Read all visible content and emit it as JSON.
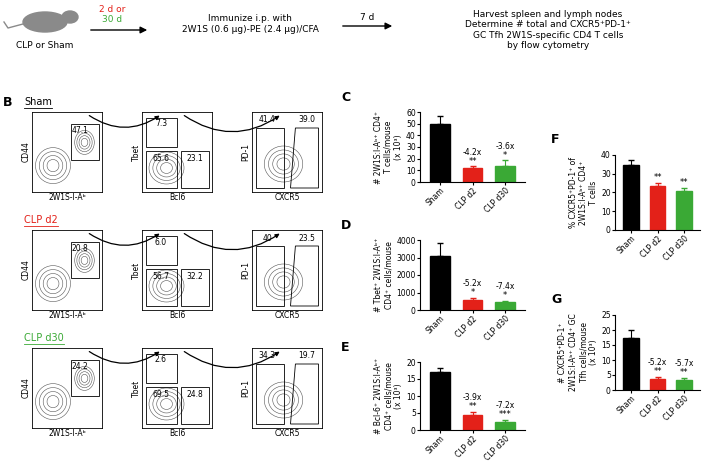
{
  "diagram": {
    "mouse_label": "CLP or Sham",
    "interval_1": {
      "text": "2 d or",
      "color": "#e32119"
    },
    "interval_2": {
      "text": "30 d",
      "color": "#3aa935"
    },
    "immunize": "Immunize i.p. with\n2W1S (0.6 μg)-PE (2.4 μg)/CFA",
    "interval_3": "7 d",
    "readout": "Harvest spleen and lymph nodes\nDetermine # total and CXCR5⁺PD-1⁺\nGC Tfh 2W1S-specific CD4 T cells\nby flow cytometry"
  },
  "flow_panels": {
    "panel": "B",
    "rows": [
      {
        "title": "Sham",
        "color": "#000000",
        "plots": [
          {
            "x_label": "2W1S-I-Aᵇ",
            "y_label": "CD44",
            "gates": [
              47.1
            ]
          },
          {
            "x_label": "Bcl6",
            "y_label": "Tbet",
            "gates": [
              7.3,
              65.6,
              23.1
            ]
          },
          {
            "x_label": "CXCR5",
            "y_label": "PD-1",
            "gates": [
              41.4,
              39.0
            ]
          }
        ]
      },
      {
        "title": "CLP d2",
        "color": "#e32119",
        "plots": [
          {
            "x_label": "2W1S-I-Aᵇ",
            "y_label": "CD44",
            "gates": [
              20.8
            ]
          },
          {
            "x_label": "Bcl6",
            "y_label": "Tbet",
            "gates": [
              6.0,
              56.7,
              32.2
            ]
          },
          {
            "x_label": "CXCR5",
            "y_label": "PD-1",
            "gates": [
              40,
              23.5
            ]
          }
        ]
      },
      {
        "title": "CLP d30",
        "color": "#3aa935",
        "plots": [
          {
            "x_label": "2W1S-I-Aᵇ",
            "y_label": "CD44",
            "gates": [
              24.2
            ]
          },
          {
            "x_label": "Bcl6",
            "y_label": "Tbet",
            "gates": [
              2.6,
              69.5,
              24.8
            ]
          },
          {
            "x_label": "CXCR5",
            "y_label": "PD-1",
            "gates": [
              34.3,
              19.7
            ]
          }
        ]
      }
    ]
  },
  "chart_data": [
    {
      "type": "bar",
      "panel": "C",
      "y_label": "# 2W1S:I-Aᵇ⁺ CD4⁺\nT cells/mouse\n(x 10³)",
      "categories": [
        "Sham",
        "CLP d2",
        "CLP d30"
      ],
      "values": [
        50,
        12,
        13.5
      ],
      "errors": [
        7,
        1.5,
        5
      ],
      "colors": [
        "#000000",
        "#e32119",
        "#3aa935"
      ],
      "fold_labels": [
        null,
        "-4.2x",
        "-3.6x"
      ],
      "significance": [
        null,
        "**",
        "*"
      ],
      "ylim": [
        0,
        60
      ],
      "yticks": [
        0,
        10,
        20,
        30,
        40,
        50,
        60
      ]
    },
    {
      "type": "bar",
      "panel": "D",
      "y_label": "# Tbet⁺ 2W1S:I-Aᵇ⁺\nCD4⁺ cells/mouse",
      "categories": [
        "Sham",
        "CLP d2",
        "CLP d30"
      ],
      "values": [
        3100,
        600,
        430
      ],
      "errors": [
        750,
        100,
        100
      ],
      "colors": [
        "#000000",
        "#e32119",
        "#3aa935"
      ],
      "fold_labels": [
        null,
        "-5.2x",
        "-7.4x"
      ],
      "significance": [
        null,
        "*",
        "*"
      ],
      "ylim": [
        0,
        4000
      ],
      "yticks": [
        0,
        1000,
        2000,
        3000,
        4000
      ]
    },
    {
      "type": "bar",
      "panel": "E",
      "y_label": "# Bcl-6⁺ 2W1S:I-Aᵇ⁺\nCD4⁺ cells/mouse\n(x 10³)",
      "categories": [
        "Sham",
        "CLP d2",
        "CLP d30"
      ],
      "values": [
        17,
        4.5,
        2.4
      ],
      "errors": [
        1.2,
        0.8,
        0.5
      ],
      "colors": [
        "#000000",
        "#e32119",
        "#3aa935"
      ],
      "fold_labels": [
        null,
        "-3.9x",
        "-7.2x"
      ],
      "significance": [
        null,
        "**",
        "***"
      ],
      "ylim": [
        0,
        20
      ],
      "yticks": [
        0,
        5,
        10,
        15,
        20
      ]
    },
    {
      "type": "bar",
      "panel": "F",
      "y_label": "% CXCR5⁺PD-1⁺ of\n2W1S:I-Aᵇ⁺ CD4⁺\nT cells",
      "categories": [
        "Sham",
        "CLP d2",
        "CLP d30"
      ],
      "values": [
        34.5,
        23.5,
        21
      ],
      "errors": [
        3,
        1.5,
        1.5
      ],
      "colors": [
        "#000000",
        "#e32119",
        "#3aa935"
      ],
      "fold_labels": [
        null,
        null,
        null
      ],
      "significance": [
        null,
        "**",
        "**"
      ],
      "ylim": [
        0,
        40
      ],
      "yticks": [
        0,
        10,
        20,
        30,
        40
      ]
    },
    {
      "type": "bar",
      "panel": "G",
      "y_label": "# CXCR5⁺PD-1⁺\n2W1S:I-Aᵇ⁺ CD4⁺ GC\nTfh cells/mouse\n(x 10³)",
      "categories": [
        "Sham",
        "CLP d2",
        "CLP d30"
      ],
      "values": [
        17.5,
        3.8,
        3.3
      ],
      "errors": [
        2.5,
        0.5,
        0.7
      ],
      "colors": [
        "#000000",
        "#e32119",
        "#3aa935"
      ],
      "fold_labels": [
        null,
        "-5.2x",
        "-5.7x"
      ],
      "significance": [
        null,
        "**",
        "**"
      ],
      "ylim": [
        0,
        25
      ],
      "yticks": [
        0,
        5,
        10,
        15,
        20,
        25
      ]
    }
  ]
}
